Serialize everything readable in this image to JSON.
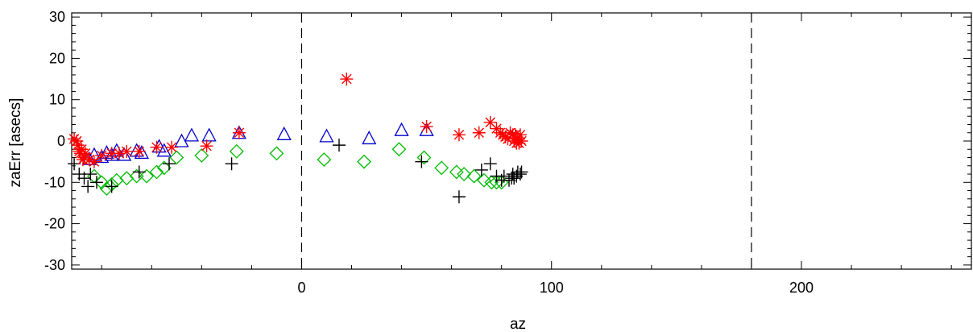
{
  "chart_data": {
    "type": "scatter",
    "title": "",
    "xlabel": "az",
    "ylabel": "zaErr [asecs]",
    "xlim": [
      -92,
      268
    ],
    "ylim": [
      -31,
      31
    ],
    "xticks": [
      0,
      100,
      200
    ],
    "xtick_labels": [
      "0",
      "100",
      "200"
    ],
    "yticks": [
      -30,
      -20,
      -10,
      0,
      10,
      20,
      30
    ],
    "ytick_labels": [
      "-30",
      "-20",
      "-10",
      "0",
      "10",
      "20",
      "30"
    ],
    "grid": false,
    "legend": "none",
    "vertical_reference_lines": [
      0,
      180
    ],
    "series": [
      {
        "marker": "asterisk",
        "color": "#ff0000",
        "points": [
          [
            -91,
            0.5
          ],
          [
            -90,
            0
          ],
          [
            -89.5,
            -1
          ],
          [
            -89,
            -2.5
          ],
          [
            -88.5,
            -3
          ],
          [
            -88,
            -2
          ],
          [
            -87.5,
            -4.5
          ],
          [
            -87,
            -4
          ],
          [
            -86.5,
            -3
          ],
          [
            -85,
            -4.5
          ],
          [
            -83,
            -5
          ],
          [
            -80,
            -3.5
          ],
          [
            -76,
            -3
          ],
          [
            -73,
            -3
          ],
          [
            -70,
            -2.5
          ],
          [
            -65,
            -2.5
          ],
          [
            -58,
            -1.5
          ],
          [
            -52,
            -1.5
          ],
          [
            -38,
            -1.2
          ],
          [
            -25,
            2
          ],
          [
            18,
            15
          ],
          [
            50,
            3.5
          ],
          [
            63,
            1.5
          ],
          [
            71,
            2
          ],
          [
            75.5,
            4.5
          ],
          [
            78,
            3
          ],
          [
            79.5,
            2
          ],
          [
            80.5,
            1.5
          ],
          [
            81.5,
            1
          ],
          [
            82.5,
            0.5
          ],
          [
            83.5,
            2
          ],
          [
            84.5,
            1.5
          ],
          [
            85,
            0
          ],
          [
            85.5,
            1.5
          ],
          [
            86,
            -0.5
          ],
          [
            86.5,
            0.5
          ],
          [
            87,
            -0.5
          ],
          [
            87.5,
            1.5
          ],
          [
            88,
            0
          ]
        ]
      },
      {
        "marker": "triangle",
        "color": "#0000cc",
        "points": [
          [
            -85,
            -4.5
          ],
          [
            -83,
            -3.5
          ],
          [
            -80,
            -4
          ],
          [
            -78,
            -3
          ],
          [
            -76,
            -3.5
          ],
          [
            -74,
            -2.5
          ],
          [
            -71,
            -3.5
          ],
          [
            -66,
            -2.5
          ],
          [
            -64,
            -3
          ],
          [
            -57,
            -1.5
          ],
          [
            -55,
            -2.5
          ],
          [
            -48,
            -0.2
          ],
          [
            -44,
            1.2
          ],
          [
            -37,
            1.2
          ],
          [
            -25,
            1.8
          ],
          [
            -7,
            1.5
          ],
          [
            10,
            1
          ],
          [
            27,
            0.5
          ],
          [
            40,
            2.5
          ],
          [
            50,
            2.5
          ]
        ]
      },
      {
        "marker": "plus",
        "color": "#000000",
        "points": [
          [
            -91,
            -5.5
          ],
          [
            -89,
            -8
          ],
          [
            -87,
            -9
          ],
          [
            -85.5,
            -11
          ],
          [
            -84.5,
            -8
          ],
          [
            -82,
            -10
          ],
          [
            -76,
            -11
          ],
          [
            -65,
            -7.5
          ],
          [
            -53,
            -5.5
          ],
          [
            -28,
            -5.5
          ],
          [
            15,
            -1
          ],
          [
            48,
            -5
          ],
          [
            63,
            -13.5
          ],
          [
            72,
            -7
          ],
          [
            75.5,
            -5.5
          ],
          [
            78,
            -8.5
          ],
          [
            80,
            -9.5
          ],
          [
            81,
            -8.5
          ],
          [
            83,
            -9.5
          ],
          [
            84,
            -9
          ],
          [
            84.5,
            -8
          ],
          [
            85,
            -9
          ],
          [
            86,
            -8.5
          ],
          [
            86.5,
            -7.5
          ],
          [
            87.5,
            -8
          ],
          [
            88,
            -7.5
          ]
        ]
      },
      {
        "marker": "diamond",
        "color": "#00bb00",
        "points": [
          [
            -83,
            -8.5
          ],
          [
            -80,
            -10
          ],
          [
            -78,
            -11.5
          ],
          [
            -76,
            -10.5
          ],
          [
            -74,
            -9.5
          ],
          [
            -70,
            -9
          ],
          [
            -66,
            -8.5
          ],
          [
            -62,
            -8.5
          ],
          [
            -58,
            -7.5
          ],
          [
            -55,
            -6.5
          ],
          [
            -50,
            -4
          ],
          [
            -40,
            -3.5
          ],
          [
            -26,
            -2.5
          ],
          [
            -10,
            -3
          ],
          [
            9,
            -4.5
          ],
          [
            25,
            -5
          ],
          [
            39,
            -2
          ],
          [
            49,
            -4
          ],
          [
            56,
            -6.5
          ],
          [
            62,
            -7.5
          ],
          [
            65,
            -8
          ],
          [
            69,
            -8.5
          ],
          [
            73,
            -9.5
          ],
          [
            76,
            -10
          ],
          [
            78,
            -10
          ],
          [
            80,
            -10
          ]
        ]
      }
    ]
  }
}
